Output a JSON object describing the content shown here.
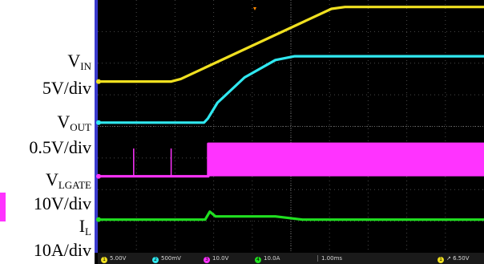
{
  "chart_data": {
    "type": "line",
    "title": "",
    "xlabel": "",
    "ylabel": "",
    "grid": true,
    "x_divisions": 10,
    "y_divisions": 8,
    "timebase": "1.00ms",
    "trigger_level": "6.50V",
    "channel_scales": [
      "5.00V",
      "500mV",
      "10.0V",
      "10.0A"
    ],
    "x_range_div": [
      0,
      10
    ],
    "y_range_div": [
      0,
      8
    ],
    "series": [
      {
        "name": "V_IN",
        "color": "#f0e020",
        "label_main": "V",
        "label_sub": "IN",
        "label_scale": "5V/div",
        "marker": "1",
        "x": [
          0,
          1.9,
          2.15,
          6.05,
          6.4,
          10
        ],
        "y": [
          5.42,
          5.42,
          5.5,
          7.72,
          7.78,
          7.78
        ]
      },
      {
        "name": "V_OUT",
        "color": "#30e8f0",
        "label_main": "V",
        "label_sub": "OUT",
        "label_scale": "0.5V/div",
        "marker": "2",
        "x": [
          0,
          2.75,
          2.85,
          3.1,
          3.8,
          4.6,
          5.1,
          10
        ],
        "y": [
          4.12,
          4.12,
          4.25,
          4.75,
          5.55,
          6.1,
          6.22,
          6.22
        ]
      },
      {
        "name": "V_LGATE",
        "color": "#ff33ff",
        "label_main": "V",
        "label_sub": "LGATE",
        "label_scale": "10V/div",
        "marker": "3",
        "x": [
          0,
          2.86,
          2.86,
          10
        ],
        "y": [
          2.42,
          2.42,
          3.45,
          3.45
        ],
        "spikes_x": [
          0.93,
          1.9
        ],
        "spikes_top": 3.3,
        "switching_x": [
          2.86,
          10
        ],
        "switching_band": [
          2.42,
          3.45
        ]
      },
      {
        "name": "I_L",
        "color": "#20e020",
        "label_main": "I",
        "label_sub": "L",
        "label_scale": "10A/div",
        "marker": "4",
        "x": [
          0,
          2.78,
          2.9,
          3.05,
          3.5,
          4.6,
          5.3,
          10
        ],
        "y": [
          1.05,
          1.05,
          1.3,
          1.15,
          1.15,
          1.15,
          1.05,
          1.05
        ]
      }
    ]
  }
}
